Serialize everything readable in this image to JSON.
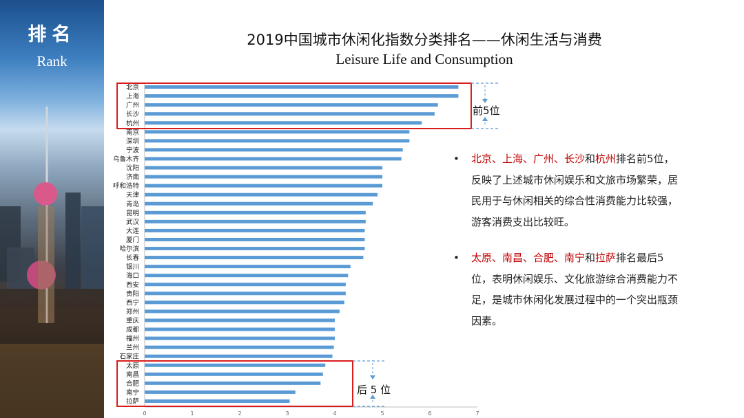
{
  "sidebar": {
    "title": "排名",
    "subtitle": "Rank"
  },
  "header": {
    "title_cn": "2019中国城市休闲化指数分类排名——休闲生活与消费",
    "title_en": "Leisure Life and Consumption"
  },
  "chart_data": {
    "type": "bar",
    "orientation": "horizontal",
    "title": "2019中国城市休闲化指数分类排名——休闲生活与消费",
    "subtitle": "Leisure Life and Consumption",
    "categories": [
      "北京",
      "上海",
      "广州",
      "长沙",
      "杭州",
      "南京",
      "深圳",
      "宁波",
      "乌鲁木齐",
      "沈阳",
      "济南",
      "呼和浩特",
      "天津",
      "青岛",
      "昆明",
      "武汉",
      "大连",
      "厦门",
      "哈尔滨",
      "长春",
      "银川",
      "海口",
      "西安",
      "贵阳",
      "西宁",
      "郑州",
      "重庆",
      "成都",
      "福州",
      "兰州",
      "石家庄",
      "太原",
      "南昌",
      "合肥",
      "南宁",
      "拉萨"
    ],
    "values": [
      6.6,
      6.6,
      6.17,
      6.1,
      5.83,
      5.57,
      5.57,
      5.43,
      5.4,
      5.0,
      5.0,
      5.0,
      4.9,
      4.8,
      4.65,
      4.65,
      4.63,
      4.63,
      4.63,
      4.6,
      4.33,
      4.28,
      4.23,
      4.23,
      4.2,
      4.1,
      4.0,
      4.0,
      4.0,
      3.98,
      3.95,
      3.8,
      3.75,
      3.7,
      3.17,
      3.05
    ],
    "xlim": [
      0,
      7
    ],
    "xticks": [
      "0",
      "1",
      "2",
      "3",
      "4",
      "5",
      "6",
      "7"
    ],
    "bar_color": "#5b9bd5",
    "grid": false,
    "annotations": [
      {
        "label": "前5位",
        "range": "top",
        "color": "#d91c1c"
      },
      {
        "label": "后 5 位",
        "range": "bottom",
        "color": "#d91c1c"
      }
    ]
  },
  "notes": [
    {
      "bullet": "•",
      "segments": [
        {
          "text": "北京、上海、广州、长沙",
          "red": true
        },
        {
          "text": "和",
          "red": false
        },
        {
          "text": "杭州",
          "red": true
        },
        {
          "text": "排名前5位，反映了上述城市休闲娱乐和文旅市场繁荣，居民用于与休闲相关的综合性消费能力比较强，游客消费支出比较旺。",
          "red": false
        }
      ]
    },
    {
      "bullet": "•",
      "segments": [
        {
          "text": "太原、南昌、合肥、南宁",
          "red": true
        },
        {
          "text": "和",
          "red": false
        },
        {
          "text": "拉萨",
          "red": true
        },
        {
          "text": "排名最后5位，表明休闲娱乐、文化旅游综合消费能力不足，是城市休闲化发展过程中的一个突出瓶颈因素。",
          "red": false
        }
      ]
    }
  ]
}
